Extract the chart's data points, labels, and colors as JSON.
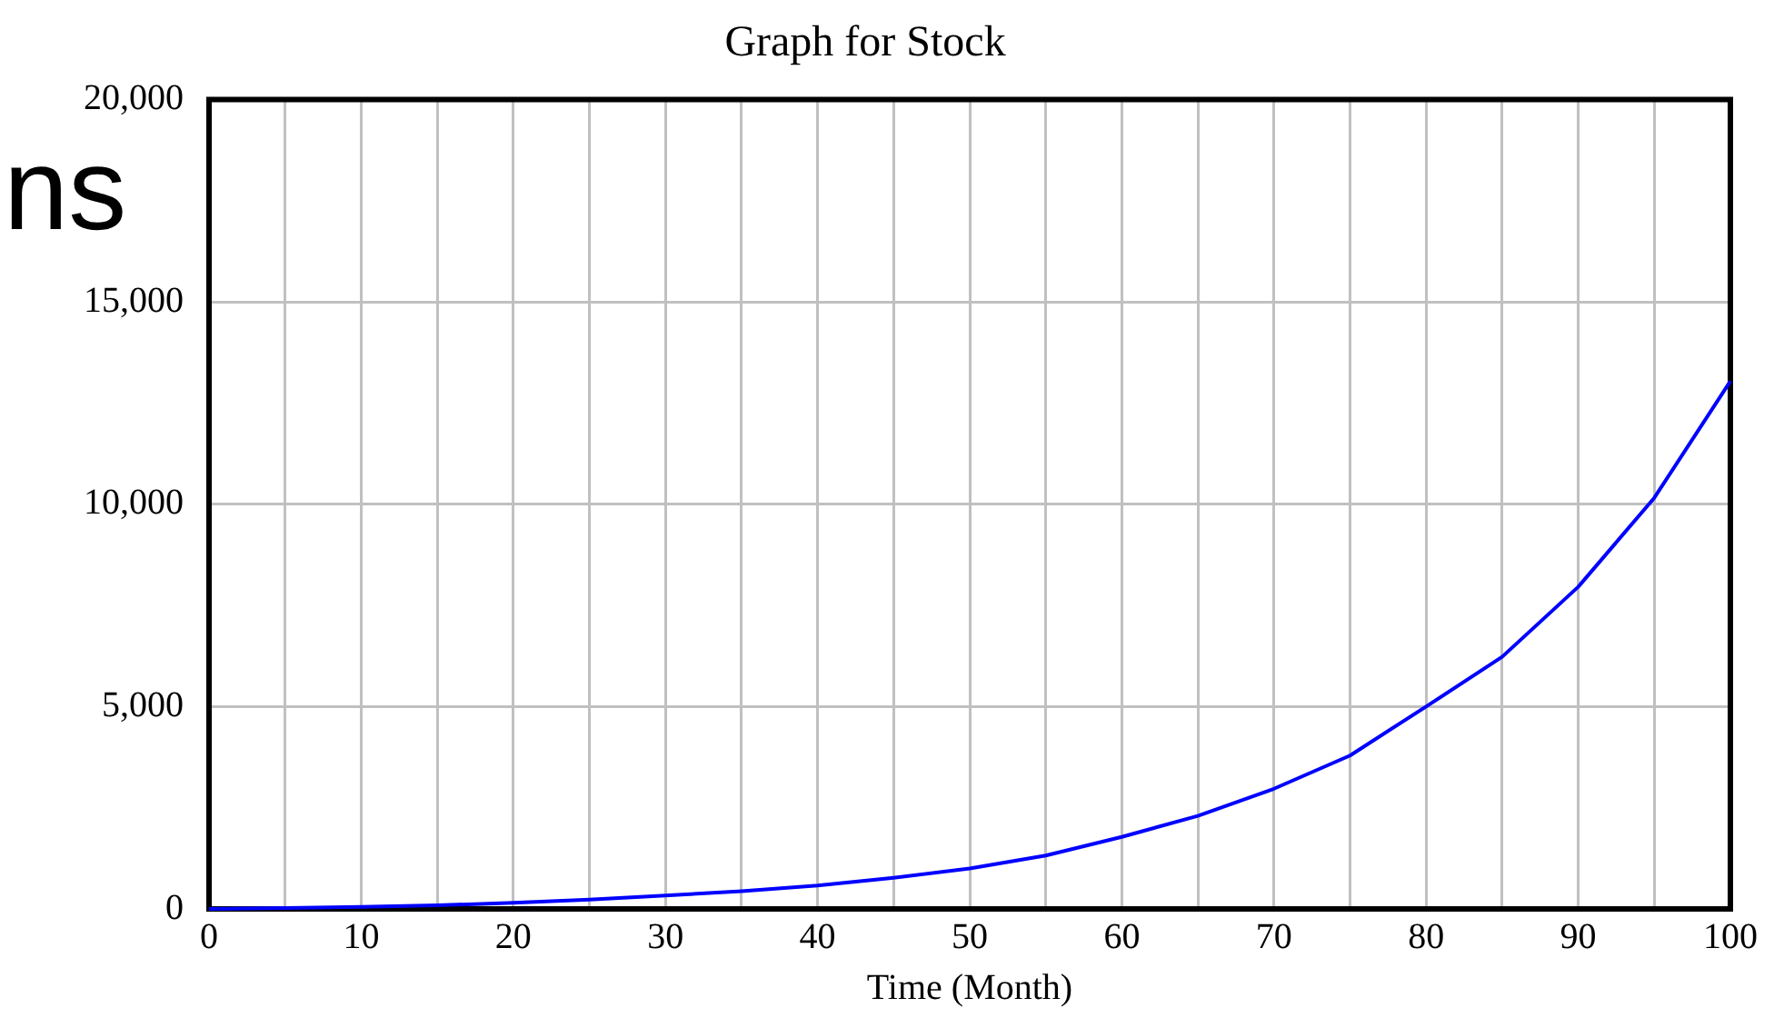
{
  "chart_data": {
    "type": "line",
    "title": "Graph for Stock",
    "xlabel": "Time (Month)",
    "annotations": [
      "ns"
    ],
    "x": [
      0,
      5,
      10,
      15,
      20,
      25,
      30,
      35,
      40,
      45,
      50,
      55,
      60,
      65,
      70,
      75,
      80,
      85,
      90,
      95,
      100
    ],
    "series": [
      {
        "color": "#0000ff",
        "values": [
          0,
          20,
          50,
          90,
          150,
          230,
          330,
          440,
          580,
          770,
          1000,
          1320,
          1780,
          2300,
          2970,
          3790,
          5000,
          6230,
          7960,
          10160,
          13040
        ]
      }
    ],
    "xlim": [
      0,
      100
    ],
    "xticks": [
      0,
      {
        "value": 5,
        "label": null
      },
      10,
      {
        "value": 15,
        "label": null
      },
      20,
      {
        "value": 25,
        "label": null
      },
      30,
      {
        "value": 35,
        "label": null
      },
      40,
      {
        "value": 45,
        "label": null
      },
      50,
      {
        "value": 55,
        "label": null
      },
      60,
      {
        "value": 65,
        "label": null
      },
      70,
      {
        "value": 75,
        "label": null
      },
      80,
      {
        "value": 85,
        "label": null
      },
      90,
      {
        "value": 95,
        "label": null
      },
      100
    ],
    "ylim": [
      0,
      20000
    ],
    "yticks": [
      {
        "value": 0,
        "label": "0"
      },
      {
        "value": 5000,
        "label": "5,000"
      },
      {
        "value": 10000,
        "label": "10,000"
      },
      {
        "value": 15000,
        "label": "15,000"
      },
      {
        "value": 20000,
        "label": "20,000"
      }
    ],
    "grid": true,
    "legend": false,
    "marker": "none",
    "line_style": "solid"
  }
}
